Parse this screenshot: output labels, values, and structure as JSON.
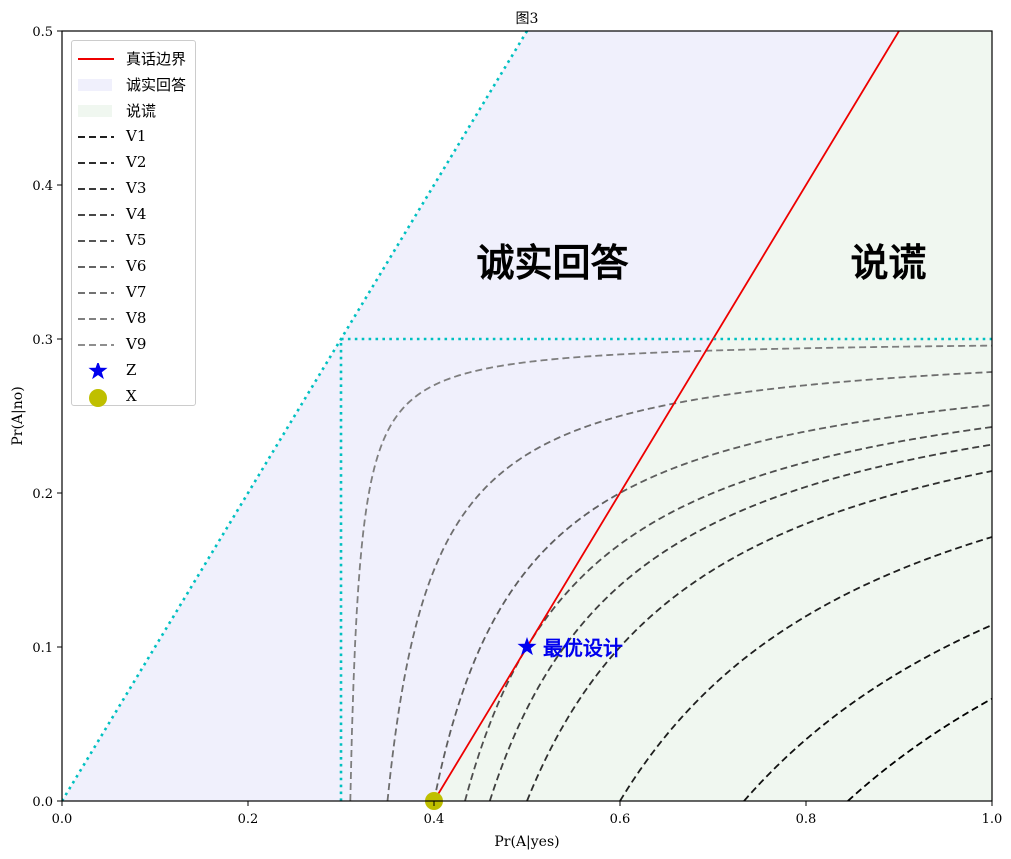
{
  "chart_data": {
    "type": "line",
    "title": "图3",
    "xlabel": "Pr(A|yes)",
    "ylabel": "Pr(A|no)",
    "xlim": [
      0.0,
      1.0
    ],
    "ylim": [
      0.0,
      0.5
    ],
    "grid": false,
    "legend_position": "upper left",
    "x_ticks": [
      "0.0",
      "0.2",
      "0.4",
      "0.6",
      "0.8",
      "1.0"
    ],
    "y_ticks": [
      "0.0",
      "0.1",
      "0.2",
      "0.3",
      "0.4",
      "0.5"
    ],
    "regions": [
      {
        "name": "诚实回答",
        "color": "#f0f0fc",
        "description": "between y=x and y=x-0.4"
      },
      {
        "name": "说谎",
        "color": "#f0f7f0",
        "description": "below y=x-0.4"
      }
    ],
    "lines": [
      {
        "name": "真话边界",
        "color": "#ee0000",
        "style": "solid",
        "points": [
          [
            0.4,
            0.0
          ],
          [
            0.9,
            0.5
          ]
        ]
      },
      {
        "name": "diagonal",
        "color": "#00c0c0",
        "style": "dotted",
        "points": [
          [
            0.0,
            0.0
          ],
          [
            0.5,
            0.5
          ]
        ]
      },
      {
        "name": "x=0.3",
        "color": "#00c0c0",
        "style": "dotted",
        "points": [
          [
            0.3,
            0.0
          ],
          [
            0.3,
            0.3
          ]
        ]
      },
      {
        "name": "y=0.3",
        "color": "#00c0c0",
        "style": "dotted",
        "points": [
          [
            0.3,
            0.3
          ],
          [
            1.0,
            0.3
          ]
        ]
      }
    ],
    "series": [
      {
        "name": "V1",
        "k": 0.1635,
        "x_at_y0": 0.845,
        "y_at_x1": 0.066,
        "color": "#000000"
      },
      {
        "name": "V2",
        "k": 0.13,
        "x_at_y0": 0.733,
        "y_at_x1": 0.114,
        "color": "#111111"
      },
      {
        "name": "V3",
        "k": 0.09,
        "x_at_y0": 0.6,
        "y_at_x1": 0.171,
        "color": "#1e1e1e"
      },
      {
        "name": "V4",
        "k": 0.06,
        "x_at_y0": 0.5,
        "y_at_x1": 0.214,
        "color": "#2e2e2e"
      },
      {
        "name": "V5",
        "k": 0.048,
        "x_at_y0": 0.46,
        "y_at_x1": 0.231,
        "color": "#3e3e3e"
      },
      {
        "name": "V6",
        "k": 0.04,
        "x_at_y0": 0.433,
        "y_at_x1": 0.243,
        "color": "#4e4e4e"
      },
      {
        "name": "V7",
        "k": 0.03,
        "x_at_y0": 0.4,
        "y_at_x1": 0.257,
        "color": "#5e5e5e"
      },
      {
        "name": "V8",
        "k": 0.015,
        "x_at_y0": 0.35,
        "y_at_x1": 0.279,
        "color": "#6e6e6e"
      },
      {
        "name": "V9",
        "k": 0.003,
        "x_at_y0": 0.31,
        "y_at_x1": 0.296,
        "color": "#7e7e7e"
      }
    ],
    "curve_formula": "(x - 0.3) * (0.3 - y) = k",
    "markers": [
      {
        "name": "Z",
        "x": 0.5,
        "y": 0.1,
        "shape": "star",
        "color": "#0000ee"
      },
      {
        "name": "X",
        "x": 0.4,
        "y": 0.0,
        "shape": "circle",
        "color": "#bfbf00"
      }
    ],
    "annotations": [
      {
        "text": "诚实回答",
        "x": 0.45,
        "y": 0.35
      },
      {
        "text": "说谎",
        "x": 0.85,
        "y": 0.35
      },
      {
        "text": "最优设计",
        "x": 0.515,
        "y": 0.1,
        "color": "#0000ee"
      }
    ],
    "legend": [
      "真话边界",
      "诚实回答",
      "说谎",
      "V1",
      "V2",
      "V3",
      "V4",
      "V5",
      "V6",
      "V7",
      "V8",
      "V9",
      "Z",
      "X"
    ]
  },
  "legend": {
    "items": [
      {
        "label": "真话边界"
      },
      {
        "label": "诚实回答"
      },
      {
        "label": "说谎"
      },
      {
        "label": "V1"
      },
      {
        "label": "V2"
      },
      {
        "label": "V3"
      },
      {
        "label": "V4"
      },
      {
        "label": "V5"
      },
      {
        "label": "V6"
      },
      {
        "label": "V7"
      },
      {
        "label": "V8"
      },
      {
        "label": "V9"
      },
      {
        "label": "Z"
      },
      {
        "label": "X"
      }
    ]
  },
  "colors": {
    "truth_boundary": "#ee0000",
    "honest_fill": "#f0f0fc",
    "lie_fill": "#f0f7f0",
    "guide": "#00c0c0",
    "star": "#0000ee",
    "dot": "#bfbf00"
  }
}
